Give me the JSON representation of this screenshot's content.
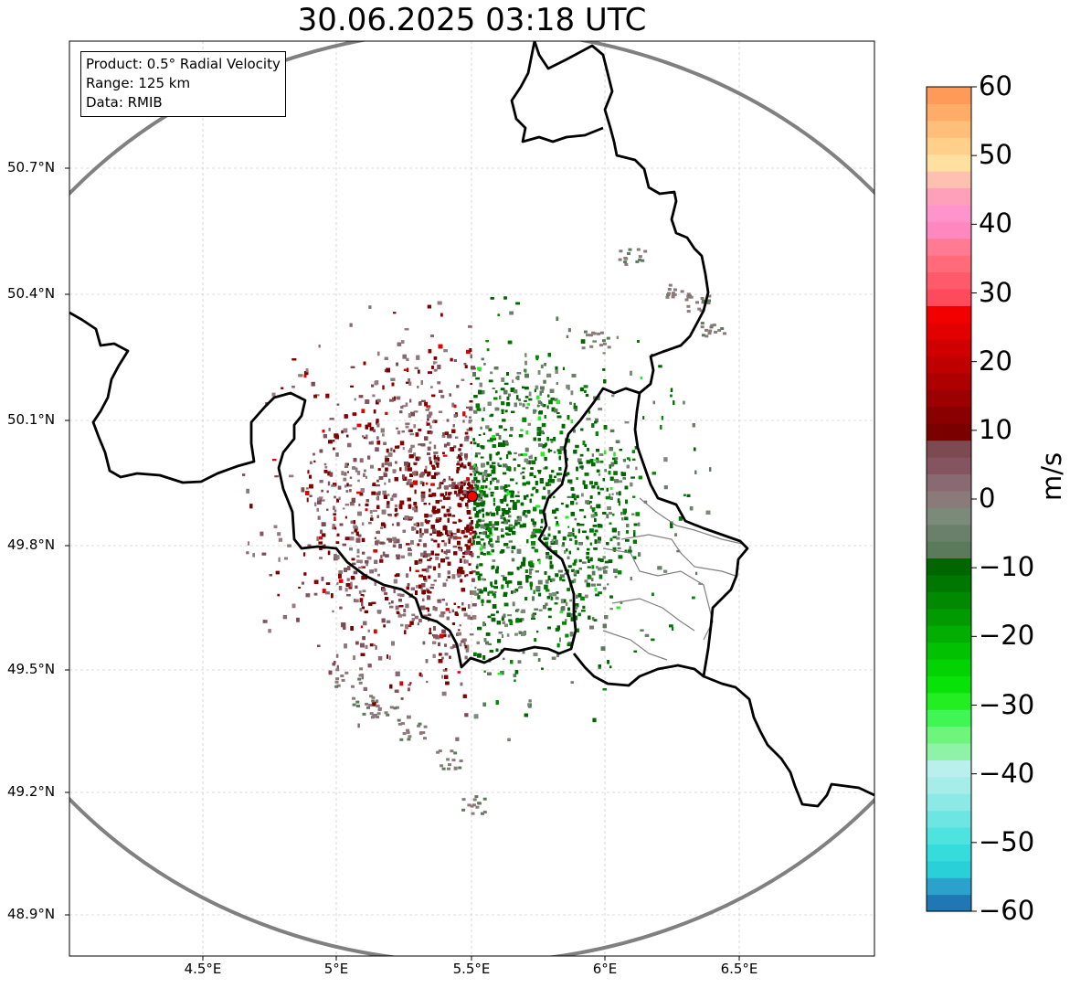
{
  "title": "30.06.2025 03:18 UTC",
  "info": {
    "product": "Product: 0.5° Radial Velocity",
    "range": "Range: 125 km",
    "source": "Data: RMIB"
  },
  "map": {
    "lon_range": [
      4.0,
      7.0
    ],
    "lat_range": [
      48.8,
      51.0
    ],
    "lat_ticks": [
      "50.7°N",
      "50.4°N",
      "50.1°N",
      "49.8°N",
      "49.5°N",
      "49.2°N",
      "48.9°N"
    ],
    "lon_ticks": [
      "4.5°E",
      "5°E",
      "5.5°E",
      "6°E",
      "6.5°E"
    ],
    "radar_site": {
      "lon": 5.505,
      "lat": 49.914
    },
    "range_ring_color": "#808080",
    "site_marker_color": "#ff0000",
    "border_color": "#000000",
    "admin_border_color": "#808080"
  },
  "colorbar": {
    "unit": "m/s",
    "min": -60,
    "max": 60,
    "tick_labels": [
      "60",
      "50",
      "40",
      "30",
      "20",
      "10",
      "0",
      "−10",
      "−20",
      "−30",
      "−40",
      "−50",
      "−60"
    ],
    "colors": [
      "#1f77b4",
      "#2aa2cc",
      "#2ad0d8",
      "#36dbdb",
      "#4fe3e0",
      "#6de6e3",
      "#8ce9e6",
      "#a6ece9",
      "#b9efec",
      "#8ef3a6",
      "#6ef57c",
      "#3ff655",
      "#22ee22",
      "#08e208",
      "#03d203",
      "#02c002",
      "#02ae02",
      "#019b01",
      "#018901",
      "#007700",
      "#006600",
      "#5a7a5a",
      "#6a806a",
      "#7c8a7a",
      "#8a7a7a",
      "#8a6a72",
      "#845560",
      "#7e4a52",
      "#7a0000",
      "#8a0000",
      "#9c0000",
      "#ad0000",
      "#bf0000",
      "#d00000",
      "#e20000",
      "#f20000",
      "#ff4a5e",
      "#ff5a6b",
      "#ff6b7a",
      "#ff7a92",
      "#ff88c0",
      "#ff94cc",
      "#ffa0ba",
      "#ffc0b0",
      "#ffe0a0",
      "#ffd08a",
      "#ffbe7a",
      "#ffac68",
      "#ff9a58"
    ]
  }
}
